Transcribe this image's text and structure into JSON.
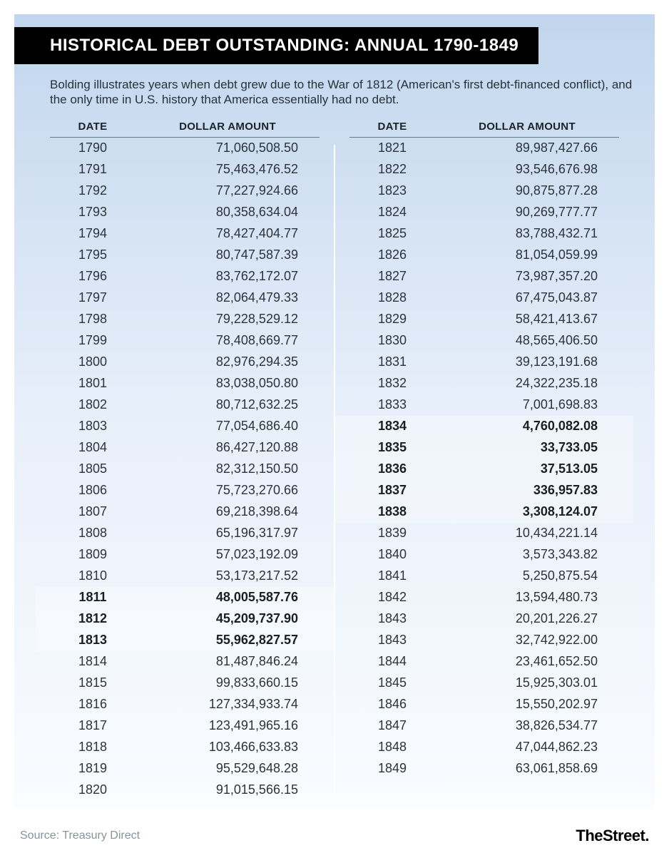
{
  "title": "HISTORICAL DEBT OUTSTANDING: ANNUAL 1790-1849",
  "subtitle": "Bolding illustrates years when debt grew due to the War of 1812 (American's first debt-financed conflict), and the only time in U.S. history that America essentially had no debt.",
  "columns": {
    "date": "DATE",
    "amount": "DOLLAR AMOUNT"
  },
  "source": "Source: Treasury Direct",
  "brand": "TheStreet",
  "style": {
    "type": "table",
    "background_gradient_top": "#c1d6ed",
    "background_gradient_bottom": "#fafcff",
    "title_bg": "#000000",
    "title_color": "#ffffff",
    "title_fontsize": 24,
    "subtitle_fontsize": 17,
    "header_border_color": "#6a7884",
    "row_fontsize": 18,
    "bold_row_bg": "rgba(255,255,255,0.35)",
    "text_color": "#2b333c",
    "bold_text_color": "#1a1f26",
    "source_color": "#8a929c",
    "brand_color": "#000000",
    "brand_fontsize": 22,
    "divider_color": "#ffffff",
    "font_family": "Arial"
  },
  "left": [
    {
      "date": "1790",
      "amount": "71,060,508.50",
      "bold": false
    },
    {
      "date": "1791",
      "amount": "75,463,476.52",
      "bold": false
    },
    {
      "date": "1792",
      "amount": "77,227,924.66",
      "bold": false
    },
    {
      "date": "1793",
      "amount": "80,358,634.04",
      "bold": false
    },
    {
      "date": "1794",
      "amount": "78,427,404.77",
      "bold": false
    },
    {
      "date": "1795",
      "amount": "80,747,587.39",
      "bold": false
    },
    {
      "date": "1796",
      "amount": "83,762,172.07",
      "bold": false
    },
    {
      "date": "1797",
      "amount": "82,064,479.33",
      "bold": false
    },
    {
      "date": "1798",
      "amount": "79,228,529.12",
      "bold": false
    },
    {
      "date": "1799",
      "amount": "78,408,669.77",
      "bold": false
    },
    {
      "date": "1800",
      "amount": "82,976,294.35",
      "bold": false
    },
    {
      "date": "1801",
      "amount": "83,038,050.80",
      "bold": false
    },
    {
      "date": "1802",
      "amount": "80,712,632.25",
      "bold": false
    },
    {
      "date": "1803",
      "amount": "77,054,686.40",
      "bold": false
    },
    {
      "date": "1804",
      "amount": "86,427,120.88",
      "bold": false
    },
    {
      "date": "1805",
      "amount": "82,312,150.50",
      "bold": false
    },
    {
      "date": "1806",
      "amount": "75,723,270.66",
      "bold": false
    },
    {
      "date": "1807",
      "amount": "69,218,398.64",
      "bold": false
    },
    {
      "date": "1808",
      "amount": "65,196,317.97",
      "bold": false
    },
    {
      "date": "1809",
      "amount": "57,023,192.09",
      "bold": false
    },
    {
      "date": "1810",
      "amount": "53,173,217.52",
      "bold": false
    },
    {
      "date": "1811",
      "amount": "48,005,587.76",
      "bold": true
    },
    {
      "date": "1812",
      "amount": "45,209,737.90",
      "bold": true
    },
    {
      "date": "1813",
      "amount": "55,962,827.57",
      "bold": true
    },
    {
      "date": "1814",
      "amount": "81,487,846.24",
      "bold": false
    },
    {
      "date": "1815",
      "amount": "99,833,660.15",
      "bold": false
    },
    {
      "date": "1816",
      "amount": "127,334,933.74",
      "bold": false
    },
    {
      "date": "1817",
      "amount": "123,491,965.16",
      "bold": false
    },
    {
      "date": "1818",
      "amount": "103,466,633.83",
      "bold": false
    },
    {
      "date": "1819",
      "amount": "95,529,648.28",
      "bold": false
    },
    {
      "date": "1820",
      "amount": "91,015,566.15",
      "bold": false
    }
  ],
  "right": [
    {
      "date": "1821",
      "amount": "89,987,427.66",
      "bold": false
    },
    {
      "date": "1822",
      "amount": "93,546,676.98",
      "bold": false
    },
    {
      "date": "1823",
      "amount": "90,875,877.28",
      "bold": false
    },
    {
      "date": "1824",
      "amount": "90,269,777.77",
      "bold": false
    },
    {
      "date": "1825",
      "amount": "83,788,432.71",
      "bold": false
    },
    {
      "date": "1826",
      "amount": "81,054,059.99",
      "bold": false
    },
    {
      "date": "1827",
      "amount": "73,987,357.20",
      "bold": false
    },
    {
      "date": "1828",
      "amount": "67,475,043.87",
      "bold": false
    },
    {
      "date": "1829",
      "amount": "58,421,413.67",
      "bold": false
    },
    {
      "date": "1830",
      "amount": "48,565,406.50",
      "bold": false
    },
    {
      "date": "1831",
      "amount": "39,123,191.68",
      "bold": false
    },
    {
      "date": "1832",
      "amount": "24,322,235.18",
      "bold": false
    },
    {
      "date": "1833",
      "amount": "7,001,698.83",
      "bold": false
    },
    {
      "date": "1834",
      "amount": "4,760,082.08",
      "bold": true
    },
    {
      "date": "1835",
      "amount": "33,733.05",
      "bold": true
    },
    {
      "date": "1836",
      "amount": "37,513.05",
      "bold": true
    },
    {
      "date": "1837",
      "amount": "336,957.83",
      "bold": true
    },
    {
      "date": "1838",
      "amount": "3,308,124.07",
      "bold": true
    },
    {
      "date": "1839",
      "amount": "10,434,221.14",
      "bold": false
    },
    {
      "date": "1840",
      "amount": "3,573,343.82",
      "bold": false
    },
    {
      "date": "1841",
      "amount": "5,250,875.54",
      "bold": false
    },
    {
      "date": "1842",
      "amount": "13,594,480.73",
      "bold": false
    },
    {
      "date": "1843",
      "amount": "20,201,226.27",
      "bold": false
    },
    {
      "date": "1843",
      "amount": "32,742,922.00",
      "bold": false
    },
    {
      "date": "1844",
      "amount": "23,461,652.50",
      "bold": false
    },
    {
      "date": "1845",
      "amount": "15,925,303.01",
      "bold": false
    },
    {
      "date": "1846",
      "amount": "15,550,202.97",
      "bold": false
    },
    {
      "date": "1847",
      "amount": "38,826,534.77",
      "bold": false
    },
    {
      "date": "1848",
      "amount": "47,044,862.23",
      "bold": false
    },
    {
      "date": "1849",
      "amount": "63,061,858.69",
      "bold": false
    }
  ]
}
